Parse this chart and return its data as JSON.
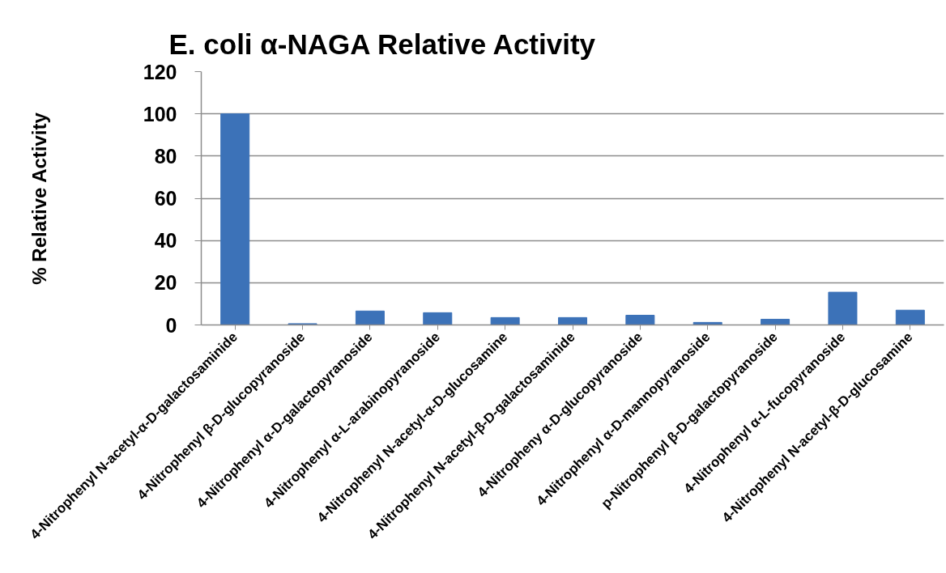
{
  "chart_data": {
    "type": "bar",
    "title": "E. coli α-NAGA Relative Activity",
    "ylabel": "% Relative Activity",
    "categories": [
      "4-Nitrophenyl N-acetyl-α-D-galactosaminide",
      "4-Nitrophenyl β-D-glucopyranoside",
      "4-Nitrophenyl α-D-galactopyranoside",
      "4-Nitrophenyl α-L-arabinopyranoside",
      "4-Nitrophenyl N-acetyl-α-D-glucosamine",
      "4-Nitrophenyl N-acetyl-β-D-galactosaminide",
      "4-Nitropheny α-D-glucopyranoside",
      "4-Nitrophenyl α-D-mannopyranoside",
      "p-Nitrophenyl β-D-galactopyranoside",
      "4-Nitrophenyl α-L-fucopyranoside",
      "4-Nitrophenyl N-acetyl-β-D-glucosamine"
    ],
    "values": [
      100,
      0.6,
      6.6,
      5.8,
      3.5,
      3.5,
      4.6,
      1.2,
      2.7,
      15.5,
      7.0
    ],
    "color": "#3c72b8",
    "ylim": [
      0,
      120
    ],
    "yticks": [
      0,
      20,
      40,
      60,
      80,
      100,
      120
    ],
    "grid": "y"
  }
}
